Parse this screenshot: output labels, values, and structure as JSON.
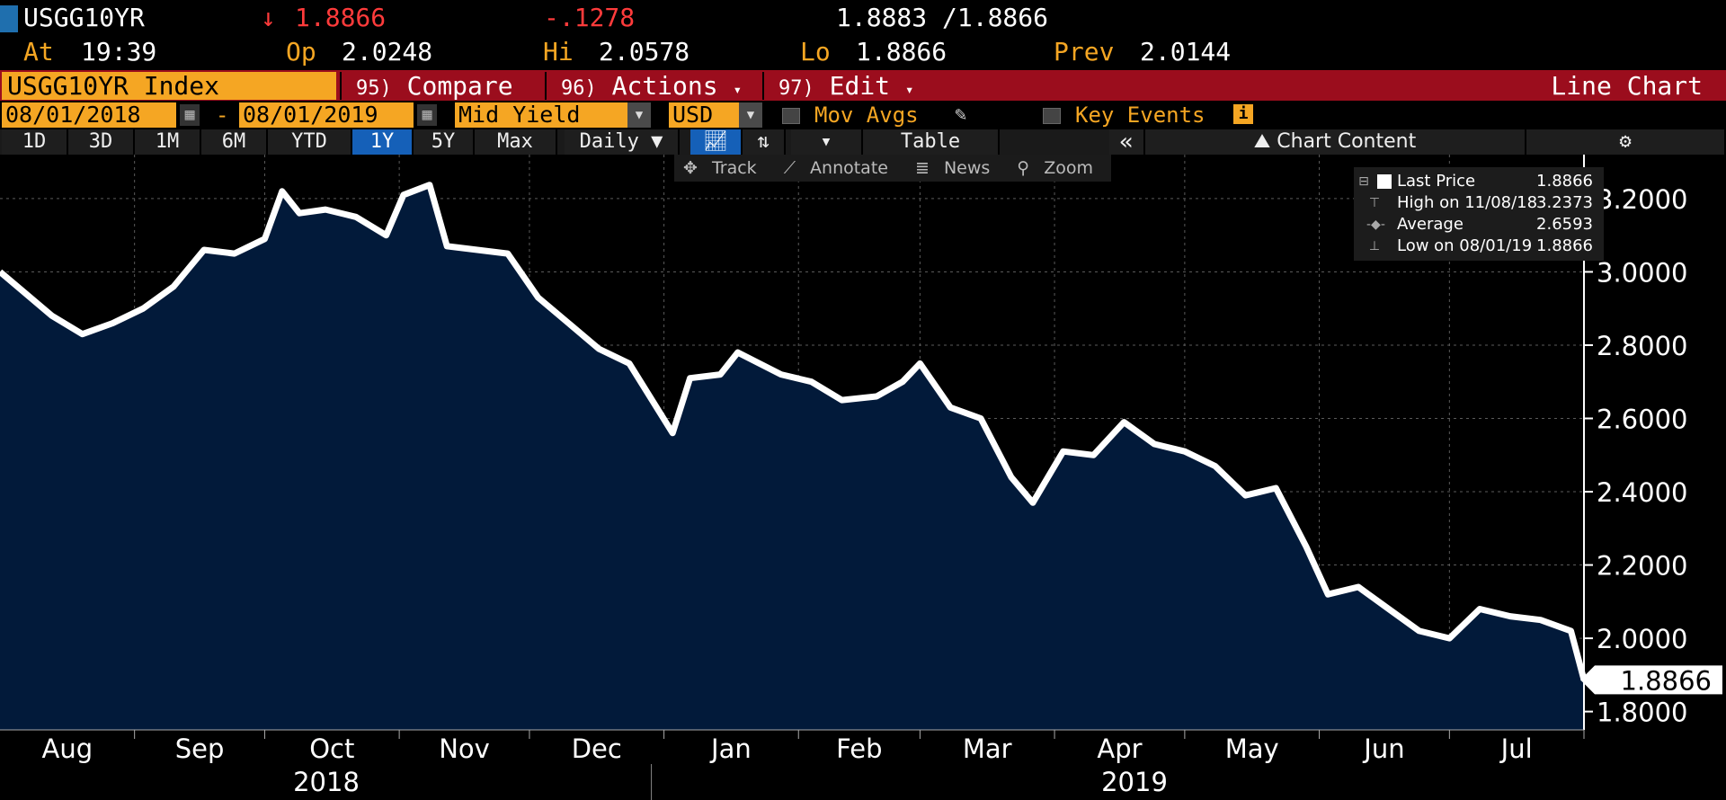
{
  "header": {
    "ticker": "USGG10YR",
    "arrow": "↓",
    "last": "1.8866",
    "change": "-.1278",
    "bid_ask": "1.8883 /1.8866",
    "time_label": "At",
    "time": "19:39",
    "open_label": "Op",
    "open": "2.0248",
    "high_label": "Hi",
    "high": "2.0578",
    "low_label": "Lo",
    "low": "1.8866",
    "prev_label": "Prev",
    "prev": "2.0144"
  },
  "menubar": {
    "index": "USGG10YR Index",
    "compare_num": "95)",
    "compare": "Compare",
    "actions_num": "96)",
    "actions": "Actions",
    "edit_num": "97)",
    "edit": "Edit",
    "view_title": "Line Chart"
  },
  "options": {
    "start_date": "08/01/2018",
    "dash": "-",
    "end_date": "08/01/2019",
    "field": "Mid Yield",
    "currency": "USD",
    "mov_avgs": "Mov Avgs",
    "key_events": "Key Events"
  },
  "periods": {
    "tabs": [
      "1D",
      "3D",
      "1M",
      "6M",
      "YTD",
      "1Y",
      "5Y",
      "Max"
    ],
    "active": "1Y",
    "frequency": "Daily ▼",
    "table": "Table",
    "collapse": "«",
    "chart_content": "Chart Content"
  },
  "tools": {
    "track": "Track",
    "annotate": "Annotate",
    "news": "News",
    "zoom": "Zoom"
  },
  "legend": {
    "last_label": "Last Price",
    "last_value": "1.8866",
    "high_label": "High on 11/08/18",
    "high_value": "3.2373",
    "avg_label": "Average",
    "avg_value": "2.6593",
    "low_label": "Low on 08/01/19",
    "low_value": "1.8866"
  },
  "colors": {
    "accent": "#f5a623",
    "menu_bar": "#9b0d1d",
    "active_tab": "#1560b8",
    "fill": "#021a3a",
    "line": "#ffffff",
    "down": "#ff3b3b"
  },
  "chart_data": {
    "type": "area",
    "title": "",
    "xlabel": "",
    "ylabel": "",
    "ylim": [
      1.75,
      3.32
    ],
    "yticks": [
      "3.2000",
      "3.0000",
      "2.8000",
      "2.6000",
      "2.4000",
      "2.2000",
      "2.0000",
      "1.8000"
    ],
    "month_labels": [
      "Aug",
      "Sep",
      "Oct",
      "Nov",
      "Dec",
      "Jan",
      "Feb",
      "Mar",
      "Apr",
      "May",
      "Jun",
      "Jul"
    ],
    "year_labels": [
      "2018",
      "2019"
    ],
    "last_value_label": "1.8866",
    "grid": true,
    "series": [
      {
        "x": [
          "2018-08-01",
          "2018-08-06",
          "2018-08-13",
          "2018-08-20",
          "2018-08-27",
          "2018-09-03",
          "2018-09-10",
          "2018-09-17",
          "2018-09-24",
          "2018-10-01",
          "2018-10-05",
          "2018-10-09",
          "2018-10-15",
          "2018-10-22",
          "2018-10-29",
          "2018-11-02",
          "2018-11-08",
          "2018-11-12",
          "2018-11-19",
          "2018-11-26",
          "2018-12-03",
          "2018-12-10",
          "2018-12-17",
          "2018-12-24",
          "2019-01-03",
          "2019-01-07",
          "2019-01-14",
          "2019-01-18",
          "2019-01-28",
          "2019-02-04",
          "2019-02-11",
          "2019-02-19",
          "2019-02-25",
          "2019-03-01",
          "2019-03-08",
          "2019-03-15",
          "2019-03-22",
          "2019-03-27",
          "2019-04-03",
          "2019-04-10",
          "2019-04-17",
          "2019-04-24",
          "2019-05-01",
          "2019-05-08",
          "2019-05-15",
          "2019-05-22",
          "2019-05-29",
          "2019-06-03",
          "2019-06-10",
          "2019-06-17",
          "2019-06-24",
          "2019-07-01",
          "2019-07-08",
          "2019-07-15",
          "2019-07-22",
          "2019-07-29",
          "2019-08-01"
        ],
        "values": [
          3.0,
          2.95,
          2.88,
          2.83,
          2.86,
          2.9,
          2.96,
          3.06,
          3.05,
          3.09,
          3.22,
          3.16,
          3.17,
          3.15,
          3.1,
          3.21,
          3.2373,
          3.07,
          3.06,
          3.05,
          2.93,
          2.86,
          2.79,
          2.75,
          2.56,
          2.71,
          2.72,
          2.78,
          2.72,
          2.7,
          2.65,
          2.66,
          2.7,
          2.75,
          2.63,
          2.6,
          2.44,
          2.37,
          2.51,
          2.5,
          2.59,
          2.53,
          2.51,
          2.47,
          2.39,
          2.41,
          2.25,
          2.12,
          2.14,
          2.08,
          2.02,
          2.0,
          2.08,
          2.06,
          2.05,
          2.02,
          1.8866
        ]
      }
    ]
  }
}
